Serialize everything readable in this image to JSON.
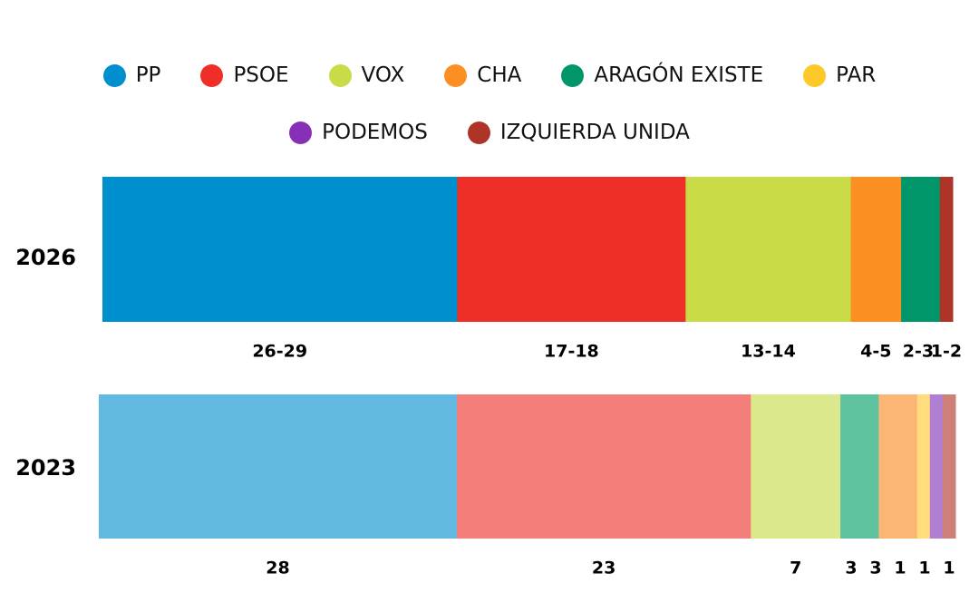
{
  "chart_data": {
    "type": "bar",
    "orientation": "horizontal-stacked",
    "title": "",
    "xlabel": "",
    "ylabel": "",
    "legend_position": "top-center",
    "grid": false,
    "legend": [
      {
        "name": "PP",
        "color": "#008fce"
      },
      {
        "name": "PSOE",
        "color": "#ee2e27"
      },
      {
        "name": "VOX",
        "color": "#c9db47"
      },
      {
        "name": "CHA",
        "color": "#fb8f22"
      },
      {
        "name": "ARAGÓN EXISTE",
        "color": "#00966a"
      },
      {
        "name": "PAR",
        "color": "#ffc829"
      },
      {
        "name": "PODEMOS",
        "color": "#8730b7"
      },
      {
        "name": "IZQUIERDA UNIDA",
        "color": "#ae3428"
      }
    ],
    "rows": [
      {
        "year": "2026",
        "segments": [
          {
            "party": "PP",
            "value": 27.5,
            "label": "26-29",
            "color": "#008fce"
          },
          {
            "party": "PSOE",
            "value": 17.7,
            "label": "17-18",
            "color": "#ee2e27"
          },
          {
            "party": "VOX",
            "value": 12.8,
            "label": "13-14",
            "color": "#c9db47"
          },
          {
            "party": "CHA",
            "value": 3.9,
            "label": "4-5",
            "color": "#fb8f22"
          },
          {
            "party": "ARAGÓN EXISTE",
            "value": 3.0,
            "label": "2-3",
            "color": "#00966a"
          },
          {
            "party": "IZQUIERDA UNIDA",
            "value": 1.0,
            "label": "1-2",
            "color": "#ae3428"
          }
        ]
      },
      {
        "year": "2023",
        "segments": [
          {
            "party": "PP",
            "value": 28,
            "label": "28",
            "color": "#62b9e1"
          },
          {
            "party": "PSOE",
            "value": 23,
            "label": "23",
            "color": "#f47f7a"
          },
          {
            "party": "VOX",
            "value": 7,
            "label": "7",
            "color": "#dde88c"
          },
          {
            "party": "ARAGÓN EXISTE",
            "value": 3,
            "label": "3",
            "color": "#5fc29f"
          },
          {
            "party": "CHA",
            "value": 3,
            "label": "3",
            "color": "#fbb675"
          },
          {
            "party": "PAR",
            "value": 1,
            "label": "1",
            "color": "#ffdd7d"
          },
          {
            "party": "PODEMOS",
            "value": 1,
            "label": "1",
            "color": "#b07fd3"
          },
          {
            "party": "IZQUIERDA UNIDA",
            "value": 1,
            "label": "1",
            "color": "#cd7f78"
          }
        ]
      }
    ]
  }
}
